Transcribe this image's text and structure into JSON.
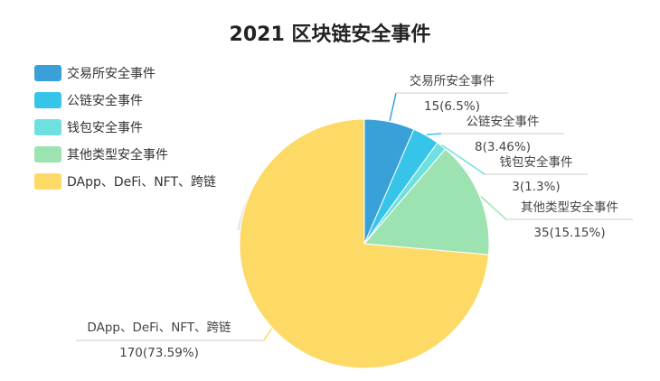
{
  "chart_data": {
    "type": "pie",
    "title": "2021 区块链安全事件",
    "legend_position": "top-left",
    "slices": [
      {
        "name": "交易所安全事件",
        "value": 15,
        "value_label": "15(6.5%)",
        "color": "#3aa0d8"
      },
      {
        "name": "公链安全事件",
        "value": 8,
        "value_label": "8(3.46%)",
        "color": "#36c5e8"
      },
      {
        "name": "钱包安全事件",
        "value": 3,
        "value_label": "3(1.3%)",
        "color": "#6fe0e0"
      },
      {
        "name": "其他类型安全事件",
        "value": 35,
        "value_label": "35(15.15%)",
        "color": "#9de3b2"
      },
      {
        "name": "DApp、DeFi、NFT、跨链",
        "value": 170,
        "value_label": "170(73.59%)",
        "color": "#fdd965"
      }
    ]
  }
}
